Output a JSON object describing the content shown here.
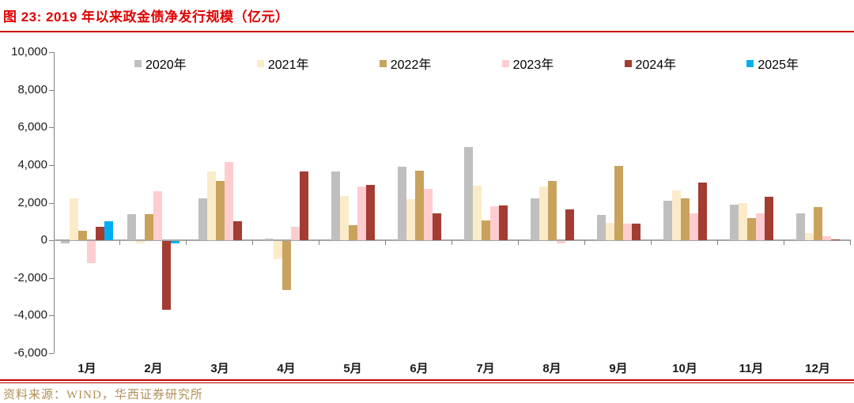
{
  "title": "图 23: 2019 年以来政金债净发行规模（亿元）",
  "source": "资料来源：WIND，华西证券研究所",
  "colors": {
    "title_red": "#E00000",
    "rule_red": "#C90000",
    "source_gold": "#B18E55",
    "axis_line": "#808080",
    "zero_line": "#A6A6A6",
    "label_text": "#1A1A1A"
  },
  "chart_data": {
    "type": "bar",
    "title": "图 23: 2019 年以来政金债净发行规模（亿元）",
    "unit": "亿元",
    "categories": [
      "1月",
      "2月",
      "3月",
      "4月",
      "5月",
      "6月",
      "7月",
      "8月",
      "9月",
      "10月",
      "11月",
      "12月"
    ],
    "series": [
      {
        "name": "2020年",
        "color": "#BFBFBF",
        "values": [
          -100,
          1400,
          2250,
          100,
          3650,
          3900,
          4950,
          2250,
          1350,
          2100,
          1900,
          1450
        ]
      },
      {
        "name": "2021年",
        "color": "#FCEBC9",
        "values": [
          2250,
          -100,
          3650,
          -950,
          2350,
          2200,
          2900,
          2850,
          950,
          2650,
          2000,
          400
        ]
      },
      {
        "name": "2022年",
        "color": "#C9A25D",
        "values": [
          500,
          1400,
          3150,
          -2600,
          800,
          3700,
          1050,
          3150,
          3950,
          2250,
          1200,
          1750
        ]
      },
      {
        "name": "2023年",
        "color": "#FFCDD0",
        "values": [
          -1150,
          2600,
          4150,
          700,
          2850,
          2750,
          1800,
          -100,
          900,
          1450,
          1450,
          200
        ]
      },
      {
        "name": "2024年",
        "color": "#A33C32",
        "values": [
          700,
          -3650,
          1000,
          3650,
          2950,
          1450,
          1850,
          1650,
          900,
          3050,
          2300,
          50
        ]
      },
      {
        "name": "2025年",
        "color": "#00AEEF",
        "values": [
          1000,
          -100,
          null,
          null,
          null,
          null,
          null,
          null,
          null,
          null,
          null,
          null
        ]
      }
    ],
    "ylim": [
      -6000,
      10000
    ],
    "ytick_step": 2000,
    "ytick_labels": [
      "10,000",
      "8,000",
      "6,000",
      "4,000",
      "2,000",
      "0",
      "-2,000",
      "-4,000",
      "-6,000"
    ],
    "legend_position": "top",
    "grid": false
  }
}
